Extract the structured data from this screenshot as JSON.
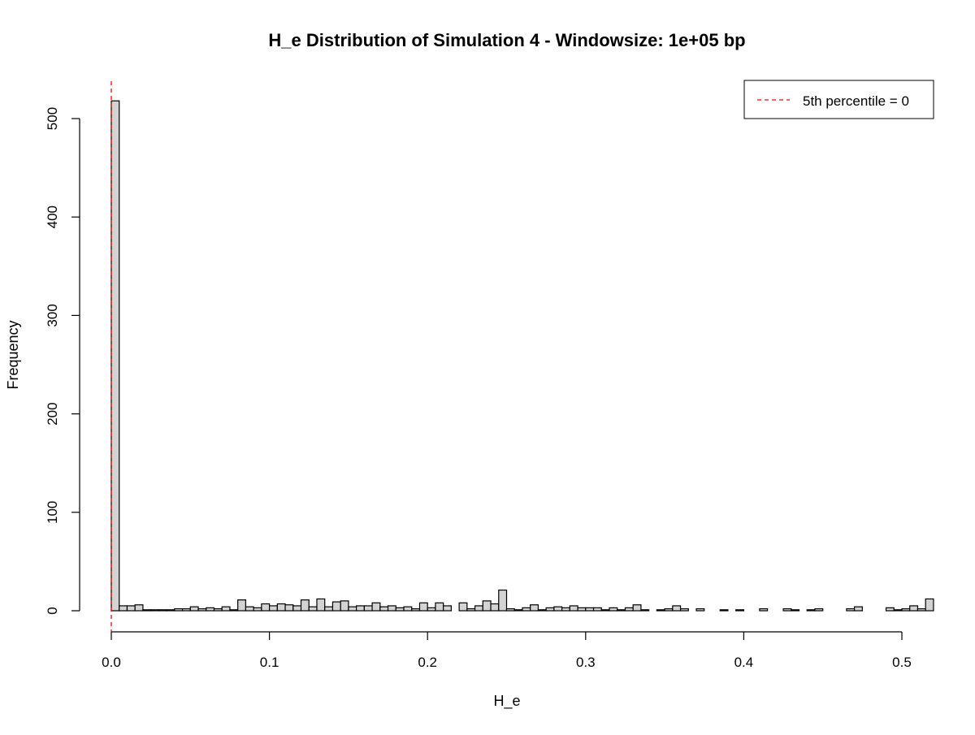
{
  "chart_data": {
    "type": "histogram",
    "title": "H_e Distribution of Simulation 4 - Windowsize: 1e+05 bp",
    "xlabel": "H_e",
    "ylabel": "Frequency",
    "xlim": [
      0,
      0.5
    ],
    "ylim": [
      0,
      520
    ],
    "x_ticks": [
      0,
      0.1,
      0.2,
      0.3,
      0.4,
      0.5
    ],
    "x_tick_labels": [
      "0.0",
      "0.1",
      "0.2",
      "0.3",
      "0.4",
      "0.5"
    ],
    "y_ticks": [
      0,
      100,
      200,
      300,
      400,
      500
    ],
    "y_tick_labels": [
      "0",
      "100",
      "200",
      "300",
      "400",
      "500"
    ],
    "bin_width": 0.005,
    "bin_start": 0,
    "counts": [
      518,
      5,
      5,
      6,
      1,
      1,
      1,
      1,
      2,
      2,
      4,
      2,
      3,
      2,
      4,
      1,
      11,
      4,
      3,
      7,
      5,
      7,
      6,
      5,
      11,
      4,
      12,
      4,
      9,
      10,
      4,
      5,
      5,
      8,
      4,
      5,
      3,
      4,
      2,
      8,
      3,
      8,
      5,
      0,
      8,
      2,
      5,
      10,
      7,
      21,
      2,
      1,
      3,
      6,
      1,
      3,
      4,
      3,
      5,
      3,
      3,
      3,
      1,
      3,
      1,
      3,
      6,
      1,
      0,
      1,
      2,
      5,
      2,
      0,
      2,
      0,
      0,
      1,
      0,
      1,
      0,
      0,
      2,
      0,
      0,
      2,
      1,
      0,
      1,
      2,
      0,
      0,
      0,
      2,
      4,
      0,
      0,
      0,
      3,
      1,
      2,
      5,
      2,
      12
    ],
    "bar_fill": "#d3d3d3",
    "bar_stroke": "#000000",
    "reference_line": {
      "x": 0,
      "color": "#ff0000",
      "style": "dashed"
    },
    "legend": {
      "position": "top-right",
      "entries": [
        {
          "label": "5th percentile = 0",
          "color": "#ff0000",
          "line": "dashed"
        }
      ]
    },
    "grid": false
  }
}
